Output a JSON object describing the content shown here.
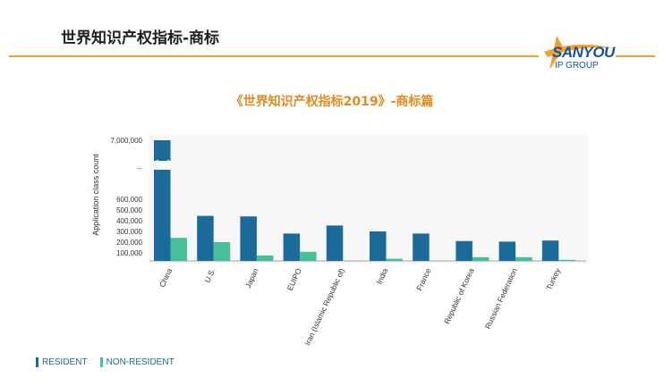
{
  "slide": {
    "title": "世界知识产权指标-商标"
  },
  "logo": {
    "brand": "SANYOU",
    "sub": "IP GROUP"
  },
  "chart_heading": "《世界知识产权指标2019》-商标篇",
  "chart_data": {
    "type": "bar",
    "ylabel": "Application class count",
    "categories": [
      "China",
      "U.S.",
      "Japan",
      "EUIPO",
      "Iran (Islamic Republic of)",
      "India",
      "France",
      "Republic of Korea",
      "Russian Federation",
      "Turkey"
    ],
    "series": [
      {
        "name": "RESIDENT",
        "color": "#1a6a9a",
        "values": [
          7000000,
          445000,
          440000,
          280000,
          355000,
          300000,
          280000,
          210000,
          205000,
          215000
        ]
      },
      {
        "name": "NON-RESIDENT",
        "color": "#45bf9c",
        "values": [
          240000,
          200000,
          75000,
          110000,
          25000,
          45000,
          15000,
          60000,
          60000,
          35000
        ]
      }
    ],
    "yticks": [
      {
        "label": "100,000",
        "value": 100000
      },
      {
        "label": "200,000",
        "value": 200000
      },
      {
        "label": "300,000",
        "value": 300000
      },
      {
        "label": "400,000",
        "value": 400000
      },
      {
        "label": "500,000",
        "value": 500000
      },
      {
        "label": "600,000",
        "value": 600000
      },
      {
        "label": "...",
        "value": null
      },
      {
        "label": "7,000,000",
        "value": 7000000
      }
    ],
    "axis_break": true,
    "ylim": [
      0,
      7000000
    ],
    "grid": false,
    "legend_position": "bottom-left"
  },
  "colors": {
    "accent": "#f0a030",
    "resident": "#1a6a9a",
    "non_resident": "#45bf9c"
  }
}
